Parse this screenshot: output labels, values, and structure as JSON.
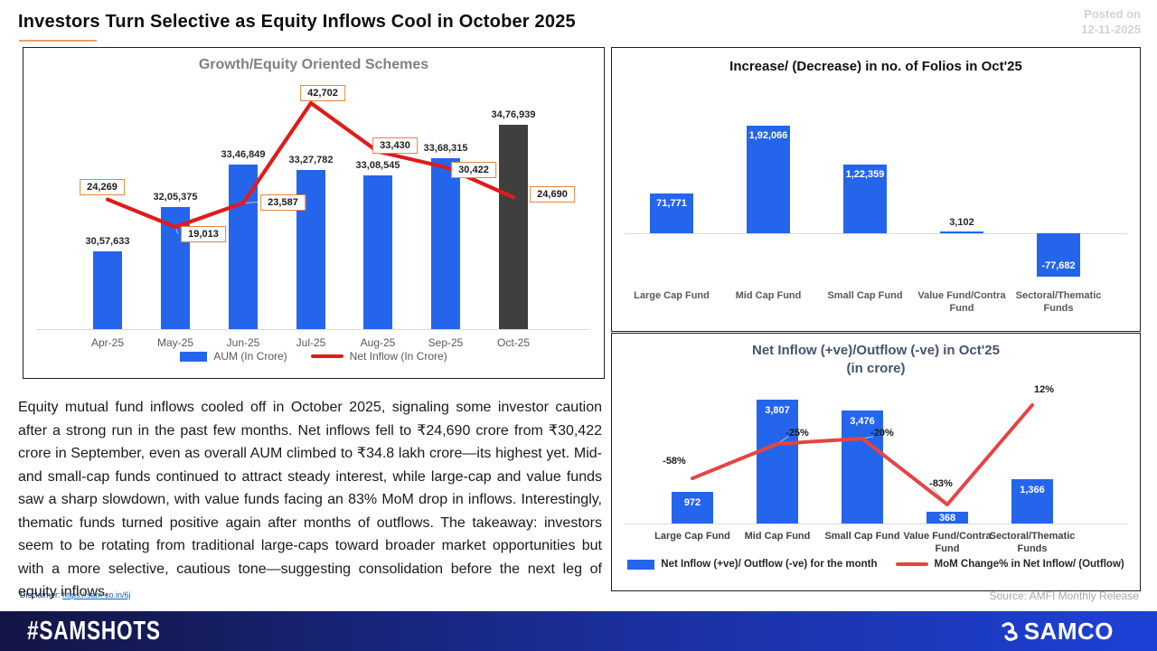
{
  "header": {
    "title": "Investors Turn Selective as Equity Inflows Cool in October 2025",
    "posted_on_label": "Posted on",
    "posted_on_date": "12-11-2025"
  },
  "commentary": "Equity mutual fund inflows cooled off in October 2025, signaling some investor caution after a strong run in the past few months. Net inflows fell to ₹24,690 crore from ₹30,422 crore in September, even as overall AUM climbed to ₹34.8 lakh crore—its highest yet. Mid- and small-cap funds continued to attract steady interest, while large-cap and value funds saw a sharp slowdown, with value funds facing an 83% MoM drop in inflows. Interestingly, thematic funds turned positive again after months of outflows. The takeaway: investors seem to be rotating from traditional large-caps toward broader market opportunities but with a more selective, cautious tone—suggesting consolidation before the next leg of equity inflows.",
  "disclaimer": {
    "label": "Disclaimer:",
    "link_text": "https://sam-co.in/6j",
    "link_url": "https://sam-co.in/6j"
  },
  "source": "Source: AMFI Monthly Release",
  "footer": {
    "hashtag": "#SAMSHOTS",
    "brand": "SAMCO"
  },
  "colors": {
    "bar_blue": "#2565EC",
    "bar_dark": "#3F3F3F",
    "line_red": "#E01B1B",
    "line_red_light": "#E54444",
    "tag_border": "#E0863C",
    "title_underline": "#E8A06C",
    "footer_left": "#131544",
    "footer_mid": "#1B2F9E",
    "footer_right": "#1D41D6"
  },
  "chart_data": [
    {
      "id": "growth-equity",
      "type": "bar+line",
      "title": "Growth/Equity Oriented Schemes",
      "categories": [
        "Apr-25",
        "May-25",
        "Jun-25",
        "Jul-25",
        "Aug-25",
        "Sep-25",
        "Oct-25"
      ],
      "series": [
        {
          "name": "AUM (In Crore)",
          "type": "bar",
          "values": [
            3057633,
            3205375,
            3346849,
            3327782,
            3308545,
            3368315,
            3476939
          ],
          "labels": [
            "30,57,633",
            "32,05,375",
            "33,46,849",
            "33,27,782",
            "33,08,545",
            "33,68,315",
            "34,76,939"
          ]
        },
        {
          "name": "Net Inflow (In Crore)",
          "type": "line",
          "values": [
            24269,
            19013,
            23587,
            42702,
            33430,
            30422,
            24690
          ],
          "labels": [
            "24,269",
            "19,013",
            "23,587",
            "42,702",
            "33,430",
            "30,422",
            "24,690"
          ]
        }
      ],
      "highlight_last_bar": true,
      "legend_position": "bottom",
      "grid": false
    },
    {
      "id": "folios",
      "type": "bar",
      "title": "Increase/ (Decrease) in no. of Folios in Oct'25",
      "categories": [
        "Large Cap Fund",
        "Mid Cap Fund",
        "Small Cap Fund",
        "Value Fund/Contra Fund",
        "Sectoral/Thematic Funds"
      ],
      "values": [
        71771,
        192066,
        122359,
        3102,
        -77682
      ],
      "labels": [
        "71,771",
        "1,92,066",
        "1,22,359",
        "3,102",
        "-77,682"
      ],
      "grid": false
    },
    {
      "id": "net-flow",
      "type": "bar+line",
      "title": "Net Inflow (+ve)/Outflow (-ve) in Oct'25",
      "subtitle": "(in crore)",
      "categories": [
        "Large Cap Fund",
        "Mid Cap Fund",
        "Small Cap Fund",
        "Value Fund/Contra Fund",
        "Sectoral/Thematic Funds"
      ],
      "series": [
        {
          "name": "Net Inflow (+ve)/ Outflow (-ve) for the month",
          "type": "bar",
          "values": [
            972,
            3807,
            3476,
            368,
            1366
          ],
          "labels": [
            "972",
            "3,807",
            "3,476",
            "368",
            "1,366"
          ]
        },
        {
          "name": "MoM Change% in Net Inflow/ (Outflow)",
          "type": "line",
          "values": [
            -58,
            -25,
            -20,
            -83,
            12
          ],
          "labels": [
            "-58%",
            "-25%",
            "-20%",
            "-83%",
            "12%"
          ]
        }
      ],
      "legend_position": "bottom",
      "grid": false
    }
  ]
}
